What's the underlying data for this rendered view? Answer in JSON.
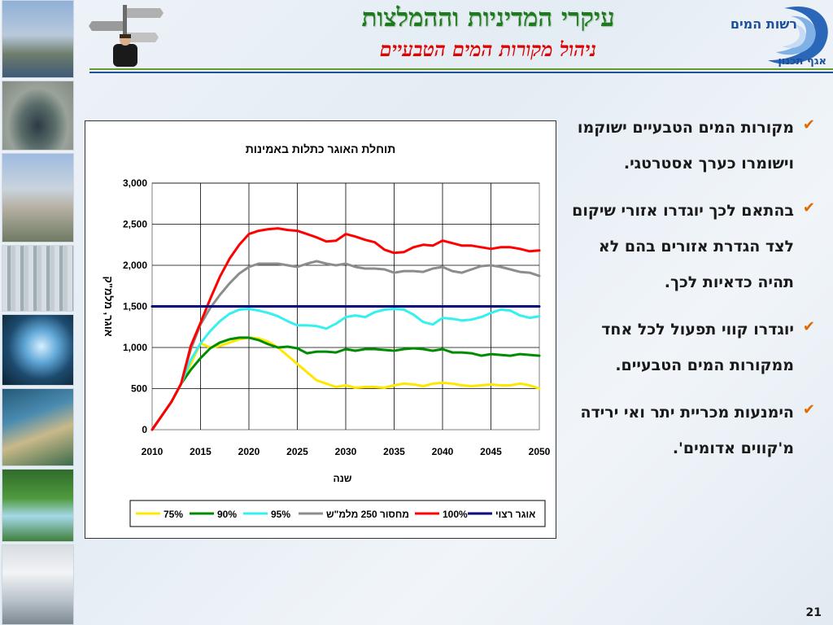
{
  "header": {
    "title": "עיקרי המדיניות וההמלצות",
    "subtitle": "ניהול מקורות המים הטבעיים"
  },
  "logo": {
    "name": "רשות המים",
    "department": "אגף תכנון"
  },
  "bullets": [
    {
      "text": "מקורות המים הטבעיים ישוקמו וישומרו כערך אסטרטגי."
    },
    {
      "text": "בהתאם לכך יוגדרו אזורי שיקום לצד הגדרת אזורים בהם לא תהיה כדאיות לכך."
    },
    {
      "text": "יוגדרו קווי תפעול לכל אחד ממקורות המים הטבעיים."
    },
    {
      "text": "הימנעות מכריית יתר ואי ירידה מ'קווים אדומים'."
    }
  ],
  "page_number": "21",
  "colors": {
    "title_green": "#1f7a1f",
    "subtitle_red": "#e00000",
    "bullet_check": "#e06a00",
    "header_line_green": "#6a9a2a",
    "header_line_blue": "#1c4f9c"
  },
  "chart_data": {
    "type": "line",
    "title": "תוחלת האוגר כתלות באמינות",
    "xlabel": "שנה",
    "ylabel": "אוגר, מלמ\"ק",
    "xlim": [
      2010,
      2050
    ],
    "ylim": [
      0,
      3000
    ],
    "xticks": [
      "2010",
      "2015",
      "2020",
      "2025",
      "2030",
      "2035",
      "2040",
      "2045",
      "2050"
    ],
    "yticks": [
      "0",
      "500",
      "1,000",
      "1,500",
      "2,000",
      "2,500",
      "3,000"
    ],
    "grid": true,
    "legend_position": "bottom",
    "x": [
      2010,
      2012,
      2013,
      2014,
      2015,
      2016,
      2017,
      2018,
      2019,
      2020,
      2021,
      2022,
      2023,
      2024,
      2025,
      2026,
      2027,
      2028,
      2029,
      2030,
      2031,
      2032,
      2033,
      2034,
      2035,
      2036,
      2037,
      2038,
      2039,
      2040,
      2041,
      2042,
      2043,
      2044,
      2045,
      2046,
      2047,
      2048,
      2049,
      2050
    ],
    "series": [
      {
        "name": "75%",
        "color": "#ffe800",
        "values": [
          0,
          340,
          560,
          800,
          1050,
          1000,
          1020,
          1060,
          1100,
          1120,
          1110,
          1070,
          1000,
          900,
          800,
          700,
          600,
          560,
          520,
          540,
          510,
          520,
          520,
          510,
          540,
          560,
          550,
          530,
          560,
          570,
          560,
          540,
          530,
          540,
          550,
          540,
          540,
          560,
          540,
          500
        ]
      },
      {
        "name": "90%",
        "color": "#008c00",
        "values": [
          0,
          340,
          560,
          730,
          870,
          990,
          1060,
          1100,
          1120,
          1120,
          1090,
          1040,
          1000,
          1010,
          990,
          930,
          950,
          950,
          940,
          980,
          960,
          980,
          980,
          970,
          960,
          980,
          990,
          980,
          960,
          980,
          940,
          940,
          930,
          900,
          920,
          910,
          900,
          920,
          910,
          900
        ]
      },
      {
        "name": "95%",
        "color": "#35f0f0",
        "values": [
          0,
          340,
          560,
          850,
          1050,
          1200,
          1320,
          1410,
          1460,
          1470,
          1450,
          1420,
          1380,
          1320,
          1270,
          1270,
          1260,
          1230,
          1290,
          1370,
          1390,
          1370,
          1430,
          1460,
          1470,
          1460,
          1400,
          1310,
          1280,
          1360,
          1350,
          1330,
          1340,
          1370,
          1420,
          1460,
          1450,
          1390,
          1360,
          1380
        ]
      },
      {
        "name": "מחסור 250 מלמ\"ש",
        "color": "#8c8c8c",
        "values": [
          0,
          340,
          560,
          980,
          1280,
          1480,
          1640,
          1780,
          1900,
          1980,
          2020,
          2020,
          2020,
          2000,
          1980,
          2020,
          2050,
          2020,
          2000,
          2020,
          1980,
          1960,
          1960,
          1950,
          1910,
          1930,
          1930,
          1920,
          1960,
          1980,
          1930,
          1910,
          1950,
          1990,
          2000,
          1980,
          1950,
          1920,
          1910,
          1870
        ]
      },
      {
        "name": "100%",
        "color": "#ff0000",
        "values": [
          0,
          340,
          560,
          1020,
          1300,
          1590,
          1860,
          2080,
          2250,
          2380,
          2420,
          2440,
          2450,
          2430,
          2420,
          2380,
          2340,
          2290,
          2300,
          2380,
          2350,
          2310,
          2280,
          2190,
          2150,
          2160,
          2220,
          2250,
          2240,
          2300,
          2270,
          2240,
          2240,
          2220,
          2200,
          2220,
          2220,
          2200,
          2170,
          2180
        ]
      },
      {
        "name": "אוגר רצוי",
        "color": "#000080",
        "values": [
          1500,
          1500,
          1500,
          1500,
          1500,
          1500,
          1500,
          1500,
          1500,
          1500,
          1500,
          1500,
          1500,
          1500,
          1500,
          1500,
          1500,
          1500,
          1500,
          1500,
          1500,
          1500,
          1500,
          1500,
          1500,
          1500,
          1500,
          1500,
          1500,
          1500,
          1500,
          1500,
          1500,
          1500,
          1500,
          1500,
          1500,
          1500,
          1500,
          1500
        ]
      }
    ]
  }
}
